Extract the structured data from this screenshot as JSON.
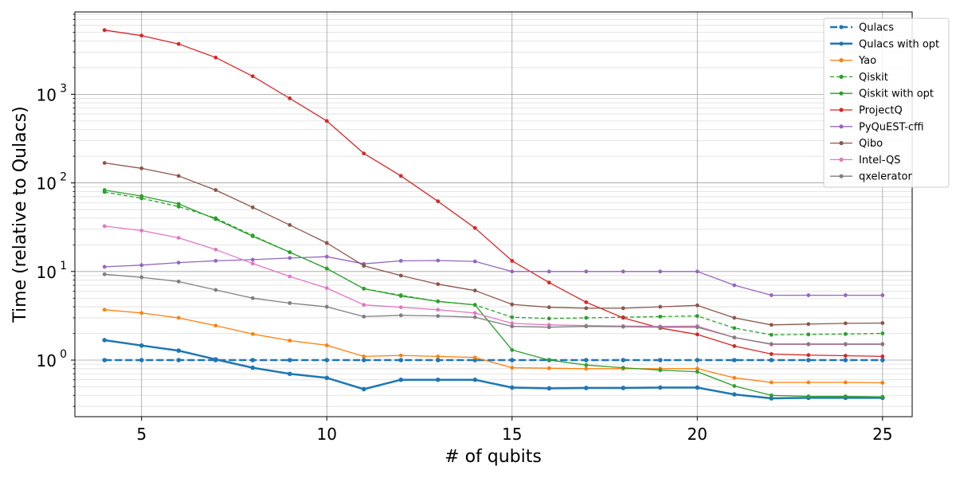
{
  "chart_data": {
    "type": "line",
    "xlabel": "# of qubits",
    "ylabel": "Time (relative to Qulacs)",
    "yscale": "log",
    "xlim": [
      3.2,
      25.8
    ],
    "ylim": [
      0.23,
      8500
    ],
    "xticks": [
      5,
      10,
      15,
      20,
      25
    ],
    "xtick_labels": [
      "5",
      "10",
      "15",
      "20",
      "25"
    ],
    "yticks": [
      1,
      10,
      100,
      1000
    ],
    "ytick_labels": [
      {
        "base": "10",
        "exp": "0"
      },
      {
        "base": "10",
        "exp": "1"
      },
      {
        "base": "10",
        "exp": "2"
      },
      {
        "base": "10",
        "exp": "3"
      }
    ],
    "grid": true,
    "legend_position": "top-right",
    "x": [
      4,
      5,
      6,
      7,
      8,
      9,
      10,
      11,
      12,
      13,
      14,
      15,
      16,
      17,
      18,
      19,
      20,
      21,
      22,
      23,
      24,
      25
    ],
    "series": [
      {
        "name": "Qulacs",
        "color": "#1f77b4",
        "style": "dashed",
        "width": 2.5,
        "values": [
          1,
          1,
          1,
          1,
          1,
          1,
          1,
          1,
          1,
          1,
          1,
          1,
          1,
          1,
          1,
          1,
          1,
          1,
          1,
          1,
          1,
          1
        ]
      },
      {
        "name": "Qulacs with opt",
        "color": "#1f77b4",
        "style": "solid",
        "width": 2.5,
        "values": [
          1.68,
          1.46,
          1.28,
          1.02,
          0.82,
          0.7,
          0.63,
          0.47,
          0.6,
          0.6,
          0.6,
          0.49,
          0.48,
          0.485,
          0.485,
          0.49,
          0.49,
          0.41,
          0.37,
          0.375,
          0.375,
          0.375
        ]
      },
      {
        "name": "Yao",
        "color": "#ff7f0e",
        "style": "solid",
        "width": 1.3,
        "values": [
          3.7,
          3.4,
          3.0,
          2.45,
          1.97,
          1.66,
          1.47,
          1.1,
          1.13,
          1.1,
          1.07,
          0.82,
          0.81,
          0.8,
          0.8,
          0.8,
          0.8,
          0.63,
          0.56,
          0.56,
          0.56,
          0.555
        ]
      },
      {
        "name": "Qiskit",
        "color": "#2ca02c",
        "style": "dashed",
        "width": 1.3,
        "values": [
          79,
          67,
          54,
          40,
          25.5,
          16.5,
          10.8,
          6.4,
          5.4,
          4.6,
          4.2,
          3.05,
          2.95,
          3.0,
          3.05,
          3.1,
          3.15,
          2.3,
          1.93,
          1.95,
          1.97,
          2.0
        ]
      },
      {
        "name": "Qiskit with opt",
        "color": "#2ca02c",
        "style": "solid",
        "width": 1.3,
        "values": [
          83,
          71,
          58,
          39,
          25,
          16.5,
          10.8,
          6.4,
          5.3,
          4.6,
          4.2,
          1.3,
          1.0,
          0.88,
          0.82,
          0.77,
          0.74,
          0.51,
          0.4,
          0.39,
          0.39,
          0.385
        ]
      },
      {
        "name": "ProjectQ",
        "color": "#d62728",
        "style": "solid",
        "width": 1.3,
        "values": [
          5300,
          4600,
          3700,
          2600,
          1600,
          900,
          500,
          215,
          120,
          62,
          31,
          13.2,
          7.5,
          4.5,
          3.0,
          2.3,
          1.95,
          1.44,
          1.17,
          1.14,
          1.12,
          1.1
        ]
      },
      {
        "name": "PyQuEST-cffi",
        "color": "#9467bd",
        "style": "solid",
        "width": 1.3,
        "values": [
          11.3,
          11.8,
          12.6,
          13.2,
          13.6,
          14.2,
          14.7,
          12.2,
          13.2,
          13.3,
          13.0,
          10.0,
          10.0,
          10.0,
          10.0,
          10.0,
          10.0,
          7.0,
          5.4,
          5.4,
          5.4,
          5.4
        ]
      },
      {
        "name": "Qibo",
        "color": "#8c564b",
        "style": "solid",
        "width": 1.3,
        "values": [
          168,
          146,
          120,
          83,
          53,
          33.5,
          21,
          11.6,
          9.0,
          7.2,
          6.1,
          4.25,
          3.95,
          3.85,
          3.85,
          4.0,
          4.15,
          3.0,
          2.5,
          2.55,
          2.6,
          2.62
        ]
      },
      {
        "name": "Intel-QS",
        "color": "#e377c2",
        "style": "solid",
        "width": 1.3,
        "values": [
          32.5,
          29,
          24,
          17.7,
          12.3,
          8.8,
          6.5,
          4.2,
          3.95,
          3.7,
          3.4,
          2.6,
          2.5,
          2.45,
          2.42,
          2.4,
          2.42,
          1.8,
          1.5,
          1.5,
          1.5,
          1.5
        ]
      },
      {
        "name": "qxelerator",
        "color": "#7f7f7f",
        "style": "solid",
        "width": 1.3,
        "values": [
          9.3,
          8.6,
          7.7,
          6.2,
          5.0,
          4.4,
          4.0,
          3.1,
          3.2,
          3.15,
          3.05,
          2.4,
          2.35,
          2.4,
          2.38,
          2.35,
          2.35,
          1.8,
          1.52,
          1.52,
          1.52,
          1.52
        ]
      }
    ]
  }
}
